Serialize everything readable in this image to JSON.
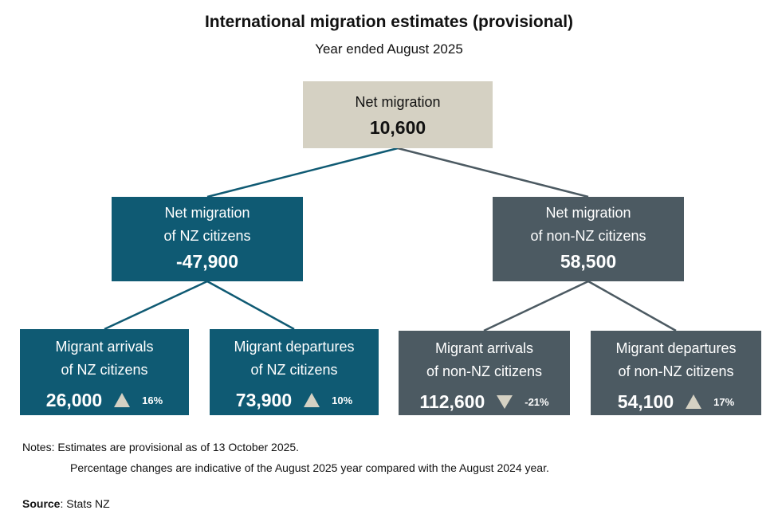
{
  "title": "International migration estimates (provisional)",
  "subtitle": "Year ended August 2025",
  "nodes": [
    {
      "lines": [
        "Net migration"
      ],
      "value": "10,600"
    },
    {
      "lines": [
        "Net migration",
        "of NZ citizens"
      ],
      "value": "-47,900"
    },
    {
      "lines": [
        "Net migration",
        "of non-NZ citizens"
      ],
      "value": "58,500"
    },
    {
      "lines": [
        "Migrant arrivals",
        "of NZ citizens"
      ],
      "value": "26,000",
      "change": "16%",
      "direction": "up"
    },
    {
      "lines": [
        "Migrant departures",
        "of NZ citizens"
      ],
      "value": "73,900",
      "change": "10%",
      "direction": "up"
    },
    {
      "lines": [
        "Migrant arrivals",
        "of non-NZ citizens"
      ],
      "value": "112,600",
      "change": "-21%",
      "direction": "down"
    },
    {
      "lines": [
        "Migrant departures",
        "of non-NZ citizens"
      ],
      "value": "54,100",
      "change": "17%",
      "direction": "up"
    }
  ],
  "notes": {
    "label": "Notes:",
    "lines": [
      "Estimates are provisional as of 13 October 2025.",
      "Percentage changes are indicative of the August 2025 year compared with the August 2024 year."
    ]
  },
  "source": {
    "label": "Source",
    "text": ": Stats NZ"
  }
}
